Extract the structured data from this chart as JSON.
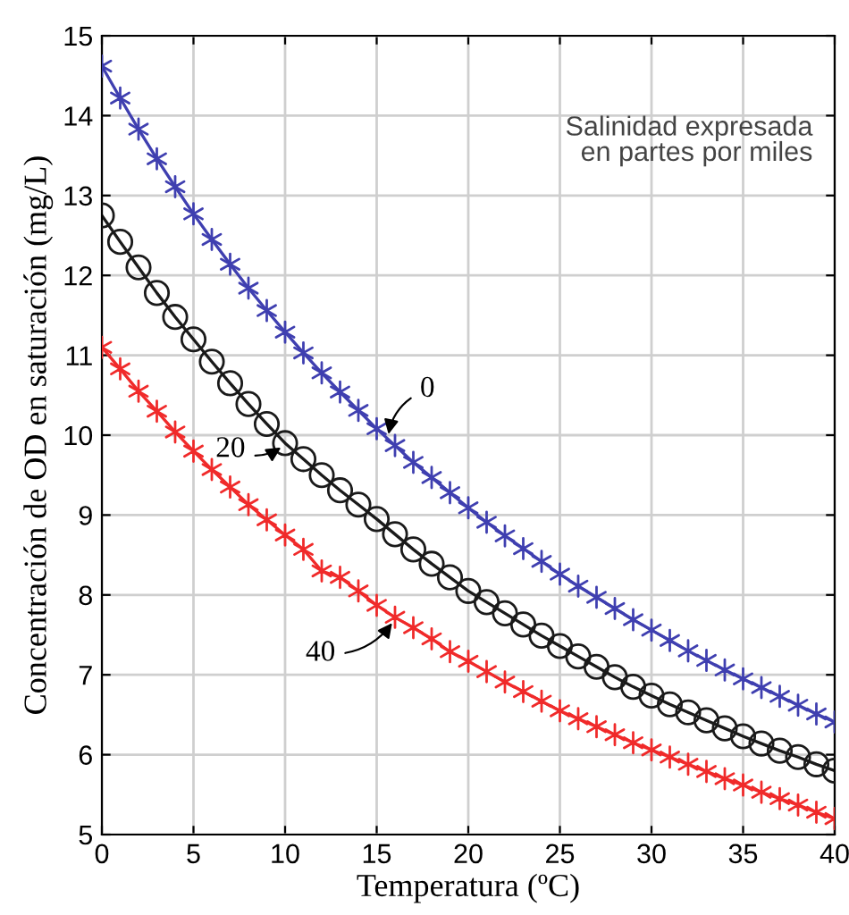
{
  "chart_data": {
    "type": "line",
    "xlabel": "Temperatura (ºC)",
    "ylabel": "Concentración de OD en saturación (mg/L)",
    "x": [
      0,
      1,
      2,
      3,
      4,
      5,
      6,
      7,
      8,
      9,
      10,
      11,
      12,
      13,
      14,
      15,
      16,
      17,
      18,
      19,
      20,
      21,
      22,
      23,
      24,
      25,
      26,
      27,
      28,
      29,
      30,
      31,
      32,
      33,
      34,
      35,
      36,
      37,
      38,
      39,
      40
    ],
    "series": [
      {
        "color": "#3f3fb0",
        "marker": "cross",
        "values": [
          14.62,
          14.22,
          13.83,
          13.46,
          13.11,
          12.77,
          12.45,
          12.14,
          11.84,
          11.56,
          11.29,
          11.03,
          10.78,
          10.54,
          10.31,
          10.08,
          9.87,
          9.66,
          9.47,
          9.28,
          9.09,
          8.91,
          8.74,
          8.58,
          8.42,
          8.26,
          8.11,
          7.97,
          7.83,
          7.69,
          7.56,
          7.43,
          7.3,
          7.18,
          7.06,
          6.95,
          6.84,
          6.73,
          6.62,
          6.51,
          6.41
        ]
      },
      {
        "color": "#1a1a1a",
        "marker": "circle",
        "values": [
          12.75,
          12.42,
          12.1,
          11.78,
          11.48,
          11.2,
          10.92,
          10.65,
          10.39,
          10.14,
          9.9,
          9.7,
          9.5,
          9.31,
          9.13,
          8.95,
          8.76,
          8.57,
          8.39,
          8.22,
          8.05,
          7.91,
          7.77,
          7.63,
          7.49,
          7.36,
          7.23,
          7.1,
          6.97,
          6.85,
          6.74,
          6.63,
          6.53,
          6.43,
          6.33,
          6.23,
          6.14,
          6.05,
          5.97,
          5.88,
          5.8
        ]
      },
      {
        "color": "#f02a2a",
        "marker": "cross",
        "values": [
          11.1,
          10.83,
          10.55,
          10.3,
          10.04,
          9.8,
          9.57,
          9.35,
          9.13,
          8.94,
          8.75,
          8.57,
          8.3,
          8.22,
          8.05,
          7.87,
          7.72,
          7.59,
          7.45,
          7.29,
          7.17,
          7.04,
          6.91,
          6.79,
          6.67,
          6.55,
          6.45,
          6.35,
          6.25,
          6.15,
          6.06,
          5.97,
          5.88,
          5.79,
          5.7,
          5.62,
          5.53,
          5.45,
          5.37,
          5.28,
          5.2
        ]
      }
    ],
    "annotations": [
      "Salinidad expresada\nen partes por miles",
      {
        "text": "0",
        "x": 15.6,
        "y": 9.95
      },
      {
        "text": "20",
        "x": 10,
        "y": 9.88
      },
      {
        "text": "40",
        "x": 16,
        "y": 7.7
      }
    ],
    "xlim": [
      0,
      40
    ],
    "xticks": [
      0,
      5,
      10,
      15,
      20,
      25,
      30,
      35,
      40
    ],
    "ylim": [
      5,
      15
    ],
    "yticks": [
      5,
      6,
      7,
      8,
      9,
      10,
      11,
      12,
      13,
      14,
      15
    ],
    "grid": true,
    "line_style": "solid"
  }
}
